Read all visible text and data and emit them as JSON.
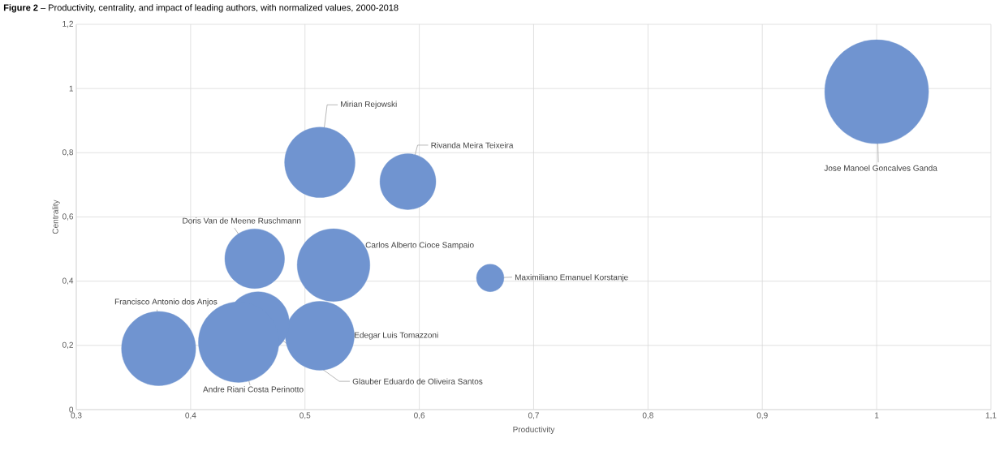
{
  "chart_data": {
    "type": "bubble",
    "title": "**Figure 2** – Productivity, centrality, and impact of leading authors, with normalized values, 2000-2018",
    "xlabel": "Productivity",
    "ylabel": "Centrality",
    "x": [
      1.0,
      0.513,
      0.59,
      0.456,
      0.525,
      0.662,
      0.513,
      0.459,
      0.372,
      0.442
    ],
    "values": [
      0.99,
      0.77,
      0.71,
      0.47,
      0.45,
      0.41,
      0.23,
      0.27,
      0.19,
      0.21
    ],
    "sizes": [
      1,
      0.46,
      0.29,
      0.33,
      0.49,
      0.07,
      0.44,
      0.36,
      0.51,
      0.6
    ],
    "color": "#7094d0",
    "annotations": [
      {
        "text": "Jose Manoel Goncalves Ganda",
        "x": 1.0,
        "y": 0.99
      },
      {
        "text": "Mirian Rejowski",
        "x": 0.513,
        "y": 0.77
      },
      {
        "text": "Rivanda Meira Teixeira",
        "x": 0.59,
        "y": 0.71
      },
      {
        "text": "Doris Van de Meene Ruschmann",
        "x": 0.456,
        "y": 0.47
      },
      "Carlos Alberto Cioce Sampaio",
      {
        "text": "Maximiliano Emanuel Korstanje",
        "x": 0.662,
        "y": 0.41
      },
      "Edegar Luis Tomazzoni",
      {
        "text": "Glauber Eduardo de Oliveira Santos",
        "x": 0.459,
        "y": 0.27
      },
      {
        "text": "Francisco Antonio dos Anjos",
        "x": 0.372,
        "y": 0.19
      },
      {
        "text": "Andre Riani Costa Perinotto",
        "x": 0.442,
        "y": 0.21
      }
    ],
    "xlim": [
      0.3,
      1.1
    ],
    "xticks": [
      {
        "value": 0.3,
        "label": "0,3"
      },
      {
        "value": 0.4,
        "label": "0,4"
      },
      {
        "value": 0.5,
        "label": "0,5"
      },
      {
        "value": 0.6,
        "label": "0,6"
      },
      {
        "value": 0.7,
        "label": "0,7"
      },
      {
        "value": 0.8,
        "label": "0,8"
      },
      {
        "value": 0.9,
        "label": "0,9"
      },
      1,
      {
        "value": 1.1,
        "label": "1,1"
      }
    ],
    "ylim": [
      0,
      1.2
    ],
    "yticks": [
      0,
      {
        "value": 0.2,
        "label": "0,2"
      },
      {
        "value": 0.4,
        "label": "0,4"
      },
      {
        "value": 0.6,
        "label": "0,6"
      },
      {
        "value": 0.8,
        "label": "0,8"
      },
      1,
      {
        "value": 1.2,
        "label": "1,2"
      }
    ],
    "grid": true
  }
}
